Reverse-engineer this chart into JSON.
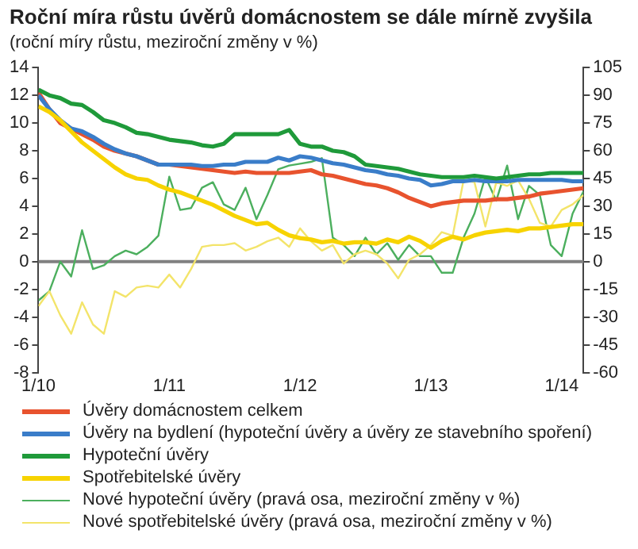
{
  "chart_data": {
    "type": "line",
    "title": "Roční míra růstu úvěrů domácnostem se dále mírně zvyšila",
    "subtitle": "(roční míry růstu, meziroční změny v %)",
    "x": [
      "2010-01",
      "2010-02",
      "2010-03",
      "2010-04",
      "2010-05",
      "2010-06",
      "2010-07",
      "2010-08",
      "2010-09",
      "2010-10",
      "2010-11",
      "2010-12",
      "2011-01",
      "2011-02",
      "2011-03",
      "2011-04",
      "2011-05",
      "2011-06",
      "2011-07",
      "2011-08",
      "2011-09",
      "2011-10",
      "2011-11",
      "2011-12",
      "2012-01",
      "2012-02",
      "2012-03",
      "2012-04",
      "2012-05",
      "2012-06",
      "2012-07",
      "2012-08",
      "2012-09",
      "2012-10",
      "2012-11",
      "2012-12",
      "2013-01",
      "2013-02",
      "2013-03",
      "2013-04",
      "2013-05",
      "2013-06",
      "2013-07",
      "2013-08",
      "2013-09",
      "2013-10",
      "2013-11",
      "2013-12",
      "2014-01",
      "2014-02",
      "2014-03"
    ],
    "series": [
      {
        "name": "Úvěry domácnostem celkem",
        "color": "#e8532e",
        "values": [
          12.2,
          11.0,
          10.0,
          9.6,
          9.2,
          8.8,
          8.3,
          8.0,
          7.8,
          7.6,
          7.3,
          7.0,
          7.0,
          6.9,
          6.8,
          6.7,
          6.6,
          6.5,
          6.4,
          6.5,
          6.4,
          6.4,
          6.4,
          6.4,
          6.5,
          6.6,
          6.3,
          6.2,
          6.0,
          5.8,
          5.6,
          5.5,
          5.3,
          5.0,
          4.6,
          4.3,
          4.0,
          4.2,
          4.3,
          4.4,
          4.4,
          4.4,
          4.5,
          4.5,
          4.6,
          4.7,
          4.9,
          5.0,
          5.1,
          5.2,
          5.3
        ]
      },
      {
        "name": "Úvěry na bydlení (hypoteční úvěry a úvěry ze stavebního spoření)",
        "color": "#3a7dc9",
        "values": [
          12.0,
          11.0,
          10.2,
          9.6,
          9.4,
          9.0,
          8.5,
          8.1,
          7.8,
          7.6,
          7.3,
          7.0,
          7.0,
          7.0,
          7.0,
          6.9,
          6.9,
          7.0,
          7.0,
          7.2,
          7.2,
          7.2,
          7.5,
          7.3,
          7.6,
          7.5,
          7.3,
          7.1,
          7.0,
          6.8,
          6.6,
          6.5,
          6.3,
          6.2,
          6.0,
          5.9,
          5.5,
          5.6,
          5.8,
          5.8,
          5.9,
          5.8,
          5.8,
          5.8,
          5.9,
          5.9,
          5.9,
          5.9,
          5.9,
          5.8,
          5.8
        ]
      },
      {
        "name": "Hypoteční úvěry",
        "color": "#1f9a3a",
        "values": [
          12.4,
          12.0,
          11.8,
          11.4,
          11.3,
          10.8,
          10.2,
          10.0,
          9.7,
          9.3,
          9.2,
          9.0,
          8.8,
          8.7,
          8.6,
          8.4,
          8.3,
          8.5,
          9.2,
          9.2,
          9.2,
          9.2,
          9.2,
          9.5,
          8.5,
          8.3,
          8.3,
          8.0,
          7.9,
          7.6,
          7.0,
          6.9,
          6.8,
          6.7,
          6.5,
          6.3,
          6.2,
          6.1,
          6.1,
          6.1,
          6.2,
          6.1,
          6.0,
          6.1,
          6.2,
          6.3,
          6.3,
          6.4,
          6.4,
          6.4,
          6.4
        ]
      },
      {
        "name": "Spotřebitelské úvěry",
        "color": "#f7d300",
        "values": [
          11.2,
          10.8,
          10.2,
          9.4,
          8.6,
          8.0,
          7.4,
          6.8,
          6.3,
          6.0,
          5.9,
          5.5,
          5.2,
          5.0,
          4.7,
          4.4,
          4.1,
          3.7,
          3.3,
          3.0,
          2.7,
          2.8,
          2.3,
          1.9,
          1.7,
          1.6,
          1.4,
          1.5,
          1.3,
          1.4,
          1.4,
          1.3,
          1.6,
          1.4,
          1.8,
          1.5,
          1.0,
          1.5,
          1.8,
          1.6,
          1.9,
          2.1,
          2.2,
          2.3,
          2.2,
          2.4,
          2.4,
          2.5,
          2.6,
          2.7,
          2.7
        ]
      },
      {
        "name": "Nové hypoteční úvěry (pravá osa, meziroční změny v %)",
        "color": "#4caf5e",
        "axis": "y2",
        "values": [
          -21,
          -16,
          0,
          -8,
          17,
          -4,
          -2,
          3,
          6,
          4,
          8,
          14,
          46,
          28,
          29,
          40,
          43,
          31,
          28,
          40,
          23,
          36,
          50,
          52,
          53,
          54,
          56,
          13,
          9,
          3,
          13,
          4,
          10,
          1,
          9,
          3,
          3,
          -6,
          -6,
          13,
          26,
          46,
          33,
          52,
          23,
          41,
          36,
          9,
          3,
          26,
          38
        ]
      },
      {
        "name": "Nové spotřebitelské úvěry (pravá osa, meziroční změny v %)",
        "color": "#f3e46a",
        "axis": "y2",
        "values": [
          -24,
          -16,
          -29,
          -39,
          -22,
          -34,
          -39,
          -16,
          -19,
          -14,
          -13,
          -14,
          -7,
          -14,
          -4,
          8,
          9,
          9,
          10,
          6,
          8,
          11,
          13,
          8,
          18,
          11,
          6,
          9,
          -1,
          4,
          6,
          4,
          -1,
          -9,
          1,
          4,
          9,
          16,
          14,
          44,
          43,
          19,
          43,
          41,
          44,
          34,
          21,
          19,
          28,
          31,
          36
        ]
      }
    ],
    "xlim": [
      "2010-01",
      "2014-03"
    ],
    "xticks": [
      {
        "value": "2010-01",
        "label": "1/10"
      },
      {
        "value": "2011-01",
        "label": "1/11"
      },
      {
        "value": "2012-01",
        "label": "1/12"
      },
      {
        "value": "2013-01",
        "label": "1/13"
      },
      {
        "value": "2014-01",
        "label": "1/14"
      }
    ],
    "ylim": [
      -8,
      14
    ],
    "yticks": [
      -8,
      -6,
      -4,
      -2,
      0,
      2,
      4,
      6,
      8,
      10,
      12,
      14
    ],
    "y2lim": [
      -60,
      105
    ],
    "y2ticks": [
      -60,
      -45,
      -30,
      -15,
      0,
      15,
      30,
      45,
      60,
      75,
      90,
      105
    ],
    "ref_lines": [
      {
        "axis": "y",
        "value": 0,
        "color": "#808080"
      }
    ],
    "grid": false,
    "legend": "bottom",
    "marker": "none",
    "line_style": "solid"
  }
}
